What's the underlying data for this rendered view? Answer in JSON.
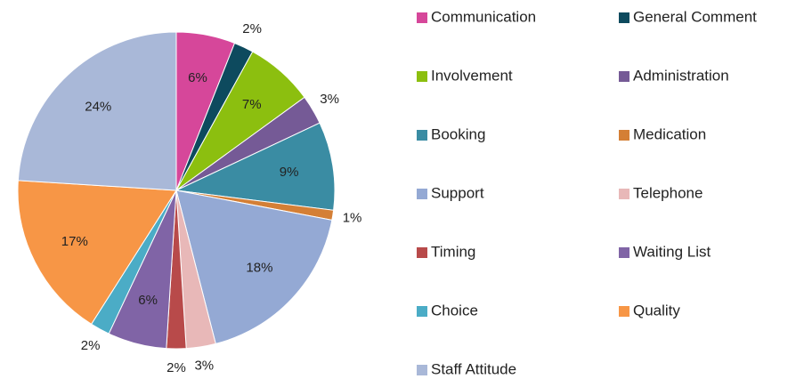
{
  "chart_data": {
    "type": "pie",
    "categories": [
      "Communication",
      "General Comment",
      "Involvement",
      "Administration",
      "Booking",
      "Medication",
      "Support",
      "Telephone",
      "Timing",
      "Waiting List",
      "Choice",
      "Quality",
      "Staff Attitude"
    ],
    "values": [
      6,
      2,
      7,
      3,
      9,
      1,
      18,
      3,
      2,
      6,
      2,
      17,
      24
    ],
    "value_labels": [
      "6%",
      "2%",
      "7%",
      "3%",
      "9%",
      "1%",
      "18%",
      "3%",
      "2%",
      "6%",
      "2%",
      "17%",
      "24%"
    ],
    "colors": [
      "#d6479a",
      "#0d4a5e",
      "#8cbf0f",
      "#755a96",
      "#3a8ca3",
      "#d47f35",
      "#94a9d4",
      "#e8b8b8",
      "#b84a4a",
      "#8064a6",
      "#4bacc6",
      "#f79646",
      "#a9b8d8"
    ],
    "legend": "right"
  }
}
